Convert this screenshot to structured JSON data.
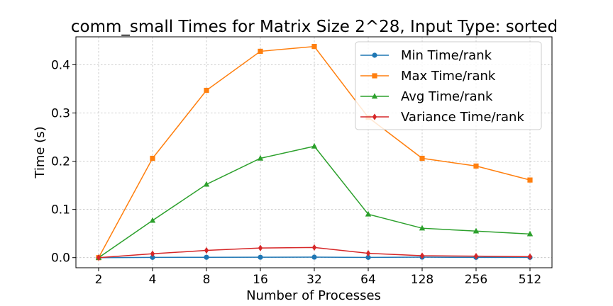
{
  "chart_data": {
    "type": "line",
    "title": "comm_small Times for Matrix Size 2^28, Input Type: sorted",
    "xlabel": "Number of Processes",
    "ylabel": "Time (s)",
    "x": [
      "2",
      "4",
      "8",
      "16",
      "32",
      "64",
      "128",
      "256",
      "512"
    ],
    "yticks": [
      "0.0",
      "0.1",
      "0.2",
      "0.3",
      "0.4"
    ],
    "ylim": [
      -0.021,
      0.458
    ],
    "grid": true,
    "legend_position": "upper-right",
    "series": [
      {
        "name": "Min Time/rank",
        "color": "#1f77b4",
        "marker": "circle",
        "values": [
          0.0,
          0.0005,
          0.0007,
          0.0008,
          0.001,
          0.0005,
          0.001,
          0.0005,
          0.0005
        ]
      },
      {
        "name": "Max Time/rank",
        "color": "#ff7f0e",
        "marker": "square",
        "values": [
          0.0,
          0.206,
          0.347,
          0.428,
          0.438,
          0.291,
          0.206,
          0.19,
          0.161
        ]
      },
      {
        "name": "Avg Time/rank",
        "color": "#2ca02c",
        "marker": "triangle",
        "values": [
          0.0,
          0.077,
          0.152,
          0.206,
          0.231,
          0.09,
          0.061,
          0.055,
          0.049
        ]
      },
      {
        "name": "Variance Time/rank",
        "color": "#d62728",
        "marker": "diamond",
        "values": [
          0.0,
          0.008,
          0.015,
          0.02,
          0.021,
          0.009,
          0.004,
          0.003,
          0.002
        ]
      }
    ]
  }
}
